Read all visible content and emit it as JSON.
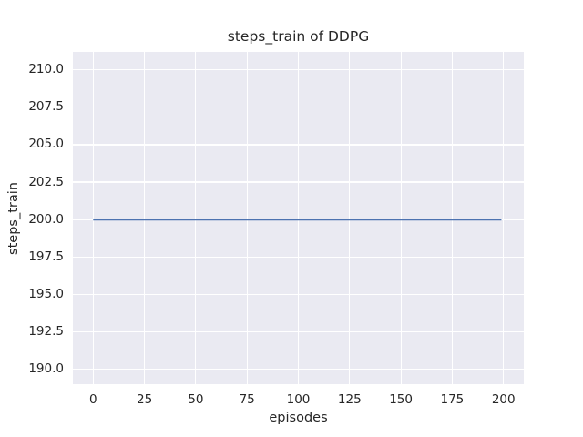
{
  "chart_data": {
    "type": "line",
    "title": "steps_train of DDPG",
    "xlabel": "episodes",
    "ylabel": "steps_train",
    "xtick_labels": [
      "0",
      "25",
      "50",
      "75",
      "100",
      "125",
      "150",
      "175",
      "200"
    ],
    "ytick_labels": [
      "190.0",
      "192.5",
      "195.0",
      "197.5",
      "200.0",
      "202.5",
      "205.0",
      "207.5",
      "210.0"
    ],
    "xlim": [
      -9.9,
      209.9
    ],
    "ylim": [
      189.0,
      211.2
    ],
    "grid": true,
    "legend_position": "none",
    "series": [
      {
        "name": "steps_train",
        "color": "#4c72b0",
        "x": [
          0,
          199
        ],
        "y": [
          200,
          200
        ],
        "description": "constant value 200 across all episodes 0-199"
      }
    ],
    "style": {
      "figure_background": "#ffffff",
      "plot_background": "#eaeaf2",
      "grid_color": "#ffffff",
      "text_color": "#262626",
      "line_width": 2.1
    }
  }
}
